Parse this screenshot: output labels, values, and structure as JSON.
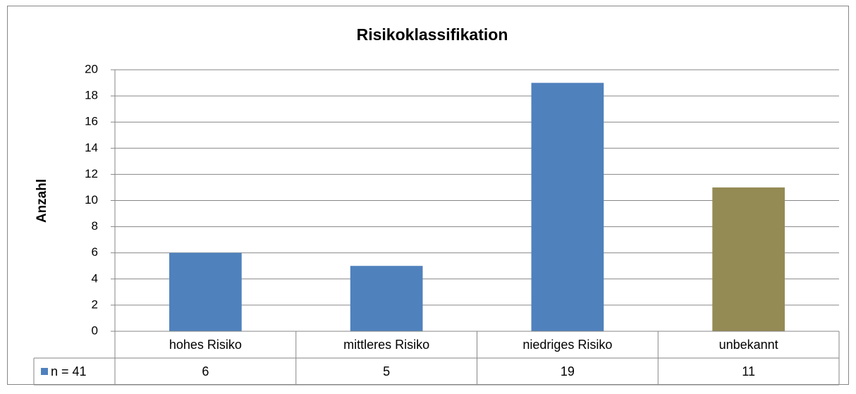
{
  "chart_data": {
    "type": "bar",
    "title": "Risikoklassifikation",
    "y_label": "Anzahl",
    "categories": [
      "hohes Risiko",
      "mittleres Risiko",
      "niedriges Risiko",
      "unbekannt"
    ],
    "series": [
      {
        "name": "n = 41",
        "color": "#4f81bd",
        "colors": [
          "#4f81bd",
          "#4f81bd",
          "#4f81bd",
          "#948a54"
        ],
        "values": [
          6,
          5,
          19,
          11
        ]
      }
    ],
    "ylim": [
      0,
      20
    ],
    "yticks": [
      0,
      2,
      4,
      6,
      8,
      10,
      12,
      14,
      16,
      18,
      20
    ],
    "grid": true,
    "data_table": true
  }
}
